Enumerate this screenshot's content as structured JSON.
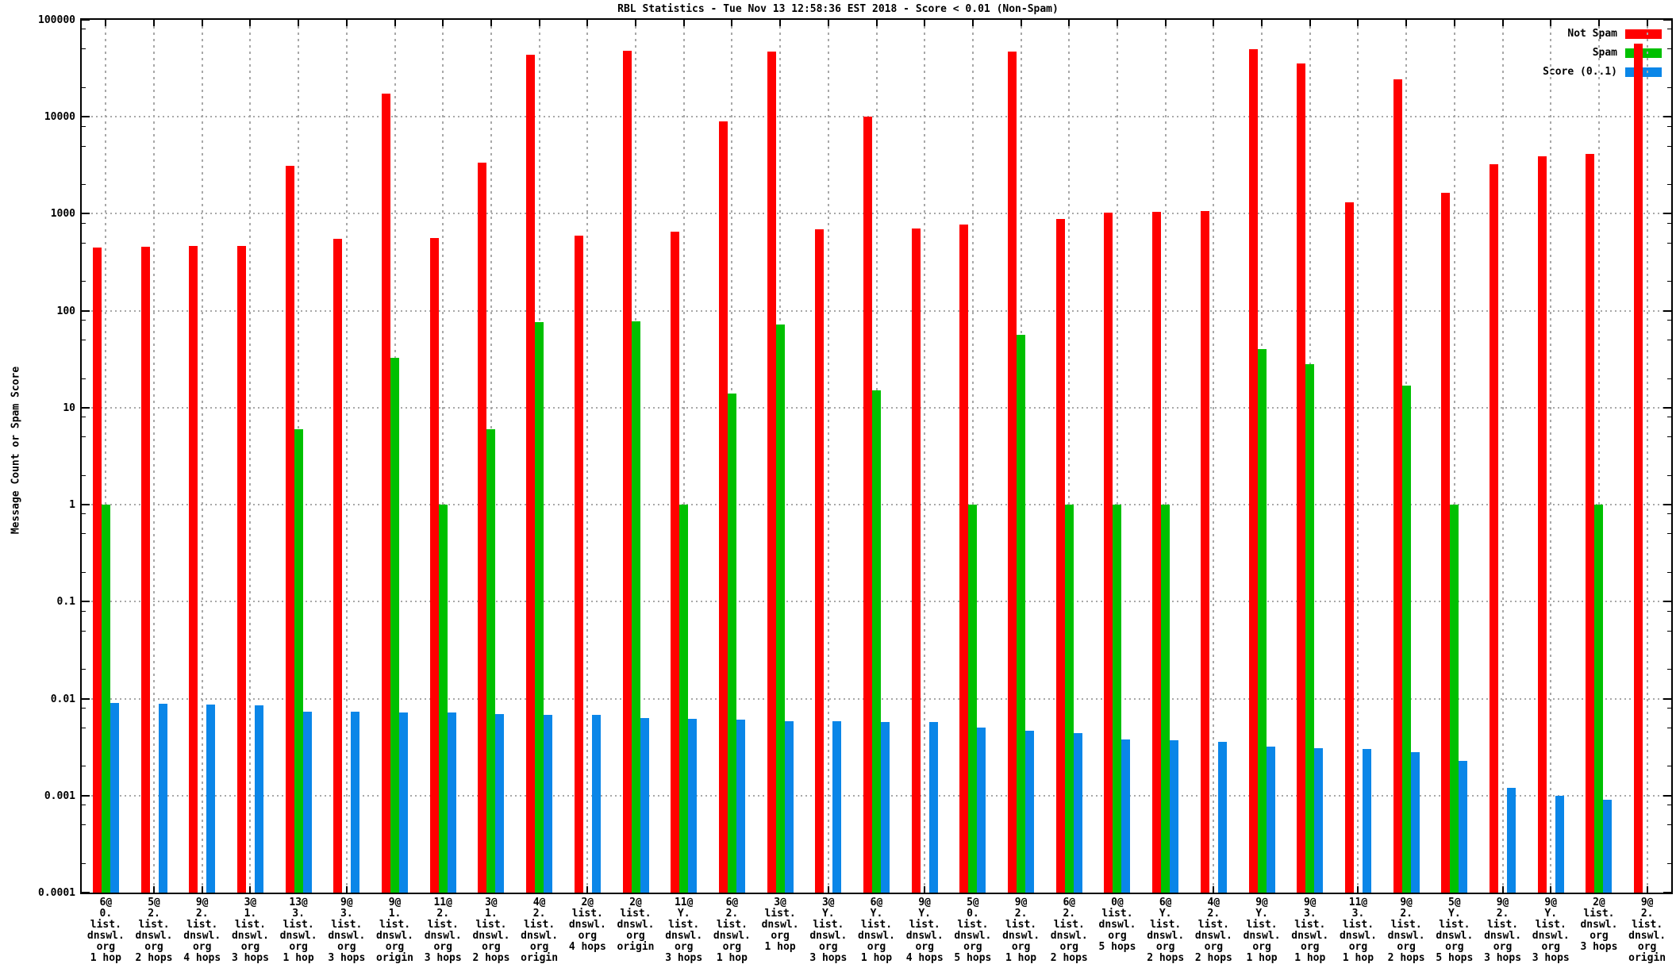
{
  "title": "RBL Statistics - Tue Nov 13 12:58:36 EST 2018 - Score < 0.01 (Non-Spam)",
  "y_axis_title": "Message Count or Spam Score",
  "legend": [
    {
      "label": "Not Spam",
      "color": "#ff0000"
    },
    {
      "label": "Spam",
      "color": "#00c000"
    },
    {
      "label": "Score (0..1)",
      "color": "#0a86e8"
    }
  ],
  "chart_data": {
    "type": "bar",
    "title": "RBL Statistics - Tue Nov 13 12:58:36 EST 2018 - Score < 0.01 (Non-Spam)",
    "xlabel": "",
    "ylabel": "Message Count or Spam Score",
    "y_scale": "log10",
    "ylim": [
      0.0001,
      100000
    ],
    "y_ticks": [
      "100000",
      "10000",
      "1000",
      "100",
      "10",
      "1",
      "0.1",
      "0.01",
      "0.001",
      "0.0001"
    ],
    "grid": true,
    "legend_position": "top-right-inside",
    "categories": [
      "6@\n0.\nlist.\ndnswl.\norg\n1 hop",
      "5@\n2.\nlist.\ndnswl.\norg\n2 hops",
      "9@\n2.\nlist.\ndnswl.\norg\n4 hops",
      "3@\n1.\nlist.\ndnswl.\norg\n3 hops",
      "13@\n3.\nlist.\ndnswl.\norg\n1 hop",
      "9@\n3.\nlist.\ndnswl.\norg\n3 hops",
      "9@\n1.\nlist.\ndnswl.\norg\norigin",
      "11@\n2.\nlist.\ndnswl.\norg\n3 hops",
      "3@\n1.\nlist.\ndnswl.\norg\n2 hops",
      "4@\n2.\nlist.\ndnswl.\norg\norigin",
      "2@\nlist.\ndnswl.\norg\n4 hops",
      "2@\nlist.\ndnswl.\norg\norigin",
      "11@\nY.\nlist.\ndnswl.\norg\n3 hops",
      "6@\n2.\nlist.\ndnswl.\norg\n1 hop",
      "3@\nlist.\ndnswl.\norg\n1 hop",
      "3@\nY.\nlist.\ndnswl.\norg\n3 hops",
      "6@\nY.\nlist.\ndnswl.\norg\n1 hop",
      "9@\nY.\nlist.\ndnswl.\norg\n4 hops",
      "5@\n0.\nlist.\ndnswl.\norg\n5 hops",
      "9@\n2.\nlist.\ndnswl.\norg\n1 hop",
      "6@\n2.\nlist.\ndnswl.\norg\n2 hops",
      "0@\nlist.\ndnswl.\norg\n5 hops",
      "6@\nY.\nlist.\ndnswl.\norg\n2 hops",
      "4@\n2.\nlist.\ndnswl.\norg\n2 hops",
      "9@\nY.\nlist.\ndnswl.\norg\n1 hop",
      "9@\n3.\nlist.\ndnswl.\norg\n1 hop",
      "11@\n3.\nlist.\ndnswl.\norg\n1 hop",
      "9@\n2.\nlist.\ndnswl.\norg\n2 hops",
      "5@\nY.\nlist.\ndnswl.\norg\n5 hops",
      "9@\n2.\nlist.\ndnswl.\norg\n3 hops",
      "9@\nY.\nlist.\ndnswl.\norg\n3 hops",
      "2@\nlist.\ndnswl.\norg\n3 hops",
      "9@\n2.\nlist.\ndnswl.\norg\norigin"
    ],
    "series": [
      {
        "name": "Not Spam",
        "color": "#ff0000",
        "values": [
          450,
          457,
          462,
          466,
          3140,
          550,
          17400,
          562,
          3390,
          43400,
          595,
          47800,
          650,
          8900,
          47400,
          690,
          10000,
          700,
          780,
          47000,
          890,
          1030,
          1040,
          1060,
          49800,
          35200,
          1320,
          24200,
          1660,
          3230,
          3890,
          4170,
          56700
        ]
      },
      {
        "name": "Spam",
        "color": "#00c000",
        "values": [
          1,
          null,
          null,
          null,
          6,
          null,
          33,
          1,
          6,
          77,
          null,
          78,
          1,
          14,
          72,
          null,
          15,
          null,
          1,
          56,
          1,
          1,
          1,
          null,
          40,
          28,
          null,
          17,
          1,
          null,
          null,
          1,
          null
        ]
      },
      {
        "name": "Score (0..1)",
        "color": "#0a86e8",
        "values": [
          0.009,
          0.0088,
          0.0087,
          0.0086,
          0.0074,
          0.0073,
          0.0072,
          0.0072,
          0.0069,
          0.0068,
          0.0068,
          0.0063,
          0.0062,
          0.0061,
          0.0059,
          0.0058,
          0.0057,
          0.0057,
          0.005,
          0.0047,
          0.0044,
          0.0038,
          0.0037,
          0.0036,
          0.0032,
          0.0031,
          0.003,
          0.0028,
          0.0023,
          0.0012,
          0.001,
          0.0009,
          null
        ]
      }
    ]
  }
}
